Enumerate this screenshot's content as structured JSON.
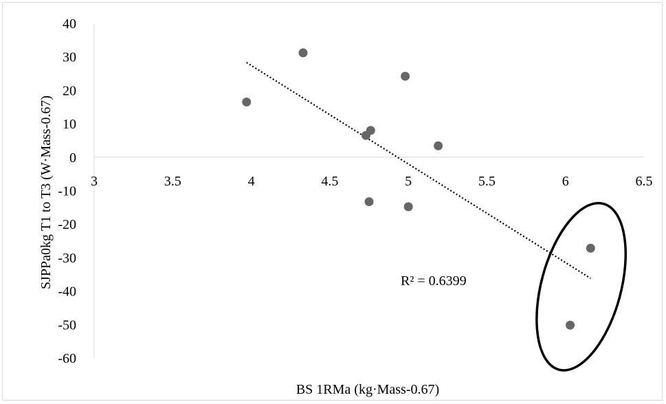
{
  "chart_data": {
    "type": "scatter",
    "xlabel": "BS 1RMa (kg·Mass-0.67)",
    "ylabel": "SJPPa0kg T1 to T3 (W·Mass-0.67)",
    "xlim": [
      3,
      6.5
    ],
    "ylim": [
      -60,
      40
    ],
    "x_ticks": [
      "3",
      "3.5",
      "4",
      "4.5",
      "5",
      "5.5",
      "6",
      "6.5"
    ],
    "y_ticks": [
      "40",
      "30",
      "20",
      "10",
      "0",
      "-10",
      "-20",
      "-30",
      "-40",
      "-50",
      "-60"
    ],
    "points": [
      {
        "x": 3.97,
        "y": 16.5
      },
      {
        "x": 4.33,
        "y": 31.2
      },
      {
        "x": 4.73,
        "y": 6.5
      },
      {
        "x": 4.76,
        "y": 8.0
      },
      {
        "x": 4.75,
        "y": -13.3
      },
      {
        "x": 4.98,
        "y": 24.2
      },
      {
        "x": 5.0,
        "y": -14.8
      },
      {
        "x": 5.19,
        "y": 3.4
      },
      {
        "x": 6.16,
        "y": -27.2
      },
      {
        "x": 6.03,
        "y": -50.2
      }
    ],
    "trendline": {
      "type": "linear",
      "style": "dotted",
      "x_start": 3.97,
      "y_start": 28.3,
      "x_end": 6.16,
      "y_end": -36.2
    },
    "r_squared_label": "R² = 0.6399",
    "highlight": {
      "shape": "ellipse",
      "center_x": 6.1,
      "center_y": -38.7
    },
    "grid": false,
    "legend": "none",
    "colors": {
      "marker": "#666666",
      "trendline": "#000000",
      "axis": "#d9d9d9",
      "highlight": "#000000"
    }
  }
}
